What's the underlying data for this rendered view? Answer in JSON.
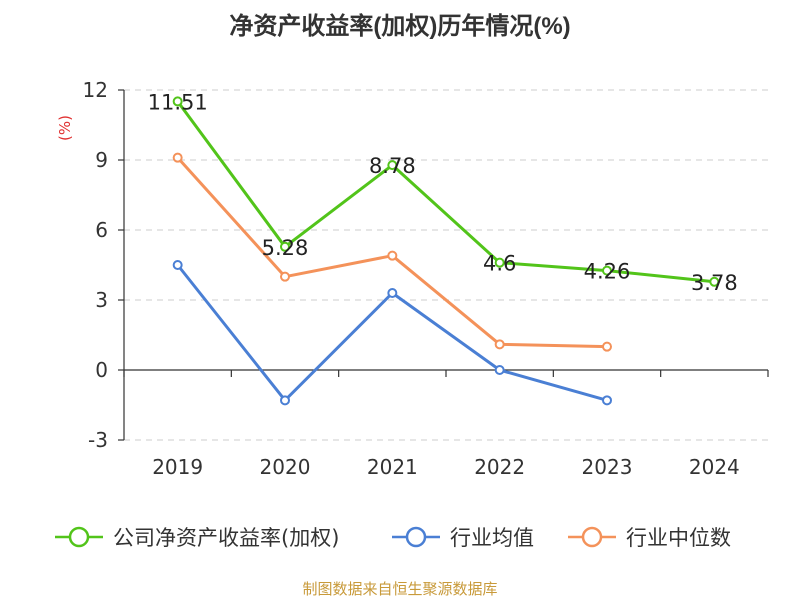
{
  "chart_data": {
    "type": "line",
    "title": "净资产收益率(加权)历年情况(%)",
    "ylabel": "(%)",
    "categories": [
      "2019",
      "2020",
      "2021",
      "2022",
      "2023",
      "2024"
    ],
    "ylim": [
      -3,
      12
    ],
    "yticks": [
      -3,
      0,
      3,
      6,
      9,
      12
    ],
    "grid": true,
    "legend_position": "bottom",
    "series": [
      {
        "name": "公司净资产收益率(加权)",
        "color": "#52c41a",
        "values": [
          11.51,
          5.28,
          8.78,
          4.6,
          4.26,
          3.78
        ],
        "labels": [
          "11.51",
          "5.28",
          "8.78",
          "4.6",
          "4.26",
          "3.78"
        ]
      },
      {
        "name": "行业均值",
        "color": "#4a7fd4",
        "values": [
          4.5,
          -1.3,
          3.3,
          0.0,
          -1.3,
          null
        ]
      },
      {
        "name": "行业中位数",
        "color": "#f4925a",
        "values": [
          9.1,
          4.0,
          4.9,
          1.1,
          1.0,
          null
        ]
      }
    ]
  },
  "source_note": "制图数据来自恒生聚源数据库"
}
